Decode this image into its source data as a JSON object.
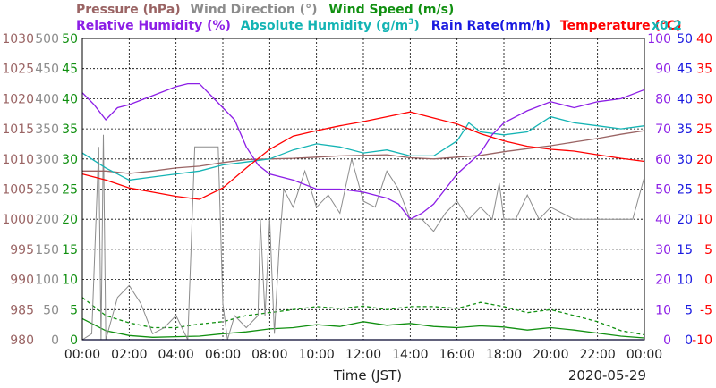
{
  "chart_data": {
    "type": "line",
    "date": "2020-05-29",
    "xlabel": "Time (JST)",
    "x_ticks": [
      "00:00",
      "02:00",
      "04:00",
      "06:00",
      "08:00",
      "10:00",
      "12:00",
      "14:00",
      "16:00",
      "18:00",
      "20:00",
      "22:00",
      "00:00"
    ],
    "x_range_hours": [
      0,
      24
    ],
    "grid": true,
    "legend": {
      "row1": [
        {
          "text": "Pressure (hPa)",
          "color": "#9a6464"
        },
        {
          "text": "Wind Direction (°)",
          "color": "#8c8c8c"
        },
        {
          "text": "Wind Speed (m/s)",
          "color": "#119011"
        }
      ],
      "row2": [
        {
          "text": "Relative Humidity (%)",
          "color": "#8c1ee6"
        },
        {
          "text": "Absolute Humidity (g/m",
          "sup": "3",
          "close": ")",
          "color": "#14b4b4"
        },
        {
          "text": "Rain Rate(mm/h)",
          "color": "#1a1ae0"
        },
        {
          "text": "Temperature (°C)",
          "color": "#ff0000"
        }
      ],
      "note": {
        "text": "x0.2",
        "color": "#14b4b4"
      }
    },
    "axes": {
      "pressure": {
        "color": "#9a6464",
        "range": [
          980,
          1030
        ],
        "ticks": [
          "1030",
          "1025",
          "1020",
          "1015",
          "1010",
          "1005",
          "1000",
          "995",
          "990",
          "985",
          "980"
        ]
      },
      "wind_direction": {
        "color": "#8c8c8c",
        "range": [
          0,
          500
        ],
        "ticks": [
          "500",
          "450",
          "400",
          "350",
          "300",
          "250",
          "200",
          "150",
          "100",
          "50",
          "0"
        ]
      },
      "wind_speed": {
        "color": "#119011",
        "range": [
          0,
          50
        ],
        "ticks": [
          "50",
          "45",
          "40",
          "35",
          "30",
          "25",
          "20",
          "15",
          "10",
          "5",
          "0"
        ]
      },
      "humidity": {
        "color": "#8c1ee6",
        "range": [
          0,
          100
        ],
        "ticks": [
          "100",
          "90",
          "80",
          "70",
          "60",
          "50",
          "40",
          "30",
          "20",
          "10",
          "0"
        ]
      },
      "rain_rate": {
        "color": "#1a1ae0",
        "range": [
          0,
          50
        ],
        "ticks": [
          "50",
          "45",
          "40",
          "35",
          "30",
          "25",
          "20",
          "15",
          "10",
          "5",
          "0"
        ]
      },
      "temperature": {
        "color": "#ff0000",
        "range": [
          -10,
          40
        ],
        "ticks": [
          "40",
          "35",
          "30",
          "25",
          "20",
          "15",
          "10",
          "5",
          "0",
          "-5",
          "-10"
        ]
      }
    },
    "series": [
      {
        "name": "Pressure (hPa)",
        "axis": "pressure",
        "color": "#9a6464",
        "x": [
          0,
          1,
          2,
          3,
          4,
          5,
          6,
          7,
          8,
          9,
          10,
          11,
          12,
          13,
          14,
          15,
          16,
          17,
          18,
          19,
          20,
          21,
          22,
          23,
          24
        ],
        "y": [
          1008,
          1008,
          1007.6,
          1008,
          1008.5,
          1008.8,
          1009.4,
          1009.9,
          1010,
          1010.1,
          1010.3,
          1010.5,
          1010.6,
          1010.7,
          1010.2,
          1010,
          1010.3,
          1010.6,
          1011.2,
          1011.7,
          1012.2,
          1012.8,
          1013.4,
          1014.1,
          1014.7
        ]
      },
      {
        "name": "Wind Direction (°)",
        "axis": "wind_direction",
        "color": "#8c8c8c",
        "x": [
          0,
          0.4,
          0.7,
          0.8,
          0.9,
          1,
          1.5,
          2,
          2.5,
          3,
          3.5,
          4,
          4.5,
          4.8,
          5,
          5.5,
          5.8,
          6,
          6.2,
          6.5,
          7,
          7.5,
          7.6,
          7.8,
          8,
          8.2,
          8.4,
          8.6,
          9,
          9.5,
          10,
          10.5,
          11,
          11.5,
          12,
          12.5,
          13,
          13.5,
          14,
          14.5,
          15,
          15.5,
          16,
          16.5,
          17,
          17.5,
          17.8,
          18,
          18.5,
          19,
          19.5,
          20,
          20.5,
          21,
          22,
          23,
          23.5,
          24
        ],
        "y": [
          0,
          10,
          320,
          0,
          340,
          0,
          70,
          90,
          60,
          10,
          20,
          40,
          0,
          320,
          320,
          320,
          320,
          60,
          0,
          40,
          20,
          40,
          200,
          40,
          200,
          10,
          150,
          250,
          220,
          280,
          220,
          240,
          210,
          300,
          230,
          220,
          280,
          250,
          200,
          200,
          180,
          210,
          230,
          200,
          220,
          200,
          260,
          200,
          200,
          240,
          200,
          220,
          210,
          200,
          200,
          200,
          200,
          270
        ]
      },
      {
        "name": "Wind Speed (m/s)",
        "axis": "wind_speed",
        "color": "#119011",
        "x": [
          0,
          1,
          2,
          3,
          4,
          5,
          6,
          7,
          8,
          9,
          10,
          11,
          12,
          13,
          14,
          15,
          16,
          17,
          18,
          19,
          20,
          21,
          22,
          23,
          24
        ],
        "y": [
          3.5,
          1.5,
          0.7,
          0.4,
          0.5,
          0.6,
          1,
          1.3,
          1.8,
          2,
          2.5,
          2.2,
          3,
          2.4,
          2.7,
          2.2,
          2,
          2.3,
          2.1,
          1.6,
          2,
          1.6,
          1.1,
          0.6,
          0.3
        ]
      },
      {
        "name": "Wind Speed gust (m/s)",
        "axis": "wind_speed",
        "color": "#119011",
        "dashed": true,
        "x": [
          0,
          1,
          2,
          3,
          4,
          5,
          6,
          7,
          8,
          9,
          10,
          11,
          12,
          13,
          14,
          15,
          16,
          17,
          18,
          19,
          20,
          21,
          22,
          23,
          24
        ],
        "y": [
          7,
          4,
          2.8,
          2,
          2,
          2.6,
          3,
          4,
          4.5,
          5,
          5.5,
          5.2,
          5.6,
          5,
          5.5,
          5.5,
          5.2,
          6.2,
          5.5,
          4.5,
          5,
          4,
          3,
          1.5,
          0.8
        ]
      },
      {
        "name": "Relative Humidity (%)",
        "axis": "humidity",
        "color": "#8c1ee6",
        "x": [
          0,
          0.5,
          1,
          1.5,
          2,
          3,
          4,
          4.5,
          5,
          5.5,
          6,
          6.5,
          7,
          7.5,
          8,
          9,
          10,
          11,
          12,
          13,
          13.5,
          14,
          14.5,
          15,
          15.5,
          16,
          17,
          17.5,
          18,
          19,
          20,
          21,
          22,
          23,
          24
        ],
        "y": [
          82,
          78,
          73,
          77,
          78,
          81,
          84,
          85,
          85,
          81,
          77,
          73,
          64,
          58,
          55,
          53,
          50,
          50,
          49,
          47,
          45,
          40,
          42,
          45,
          50,
          55,
          62,
          68,
          72,
          76,
          79,
          77,
          79,
          80,
          83
        ]
      },
      {
        "name": "Absolute Humidity (g/m3)",
        "axis": "humidity",
        "color": "#14b4b4",
        "x": [
          0,
          1,
          2,
          3,
          4,
          5,
          6,
          7,
          8,
          9,
          10,
          11,
          12,
          13,
          14,
          15,
          16,
          16.5,
          17,
          18,
          19,
          20,
          21,
          22,
          23,
          24
        ],
        "y": [
          62,
          57,
          53,
          54,
          55,
          56,
          58,
          59,
          60,
          63,
          65,
          64,
          62,
          63,
          61,
          61,
          66,
          72,
          69,
          68,
          69,
          74,
          72,
          71,
          70,
          71
        ]
      },
      {
        "name": "Rain Rate(mm/h)",
        "axis": "rain_rate",
        "color": "#1a1ae0",
        "x": [
          0,
          24
        ],
        "y": [
          0,
          0
        ]
      },
      {
        "name": "Temperature (°C)",
        "axis": "temperature",
        "color": "#ff0000",
        "x": [
          0,
          1,
          2,
          3,
          4,
          5,
          6,
          7,
          8,
          9,
          10,
          11,
          12,
          13,
          14,
          15,
          16,
          17,
          18,
          19,
          20,
          21,
          22,
          23,
          24
        ],
        "y": [
          17.5,
          16.5,
          15.2,
          14.5,
          13.8,
          13.3,
          15.2,
          18.5,
          21.6,
          23.8,
          24.7,
          25.5,
          26.2,
          27,
          27.8,
          26.8,
          25.8,
          24.2,
          23,
          22.1,
          21.6,
          21.3,
          20.7,
          20.1,
          19.6
        ]
      }
    ]
  }
}
